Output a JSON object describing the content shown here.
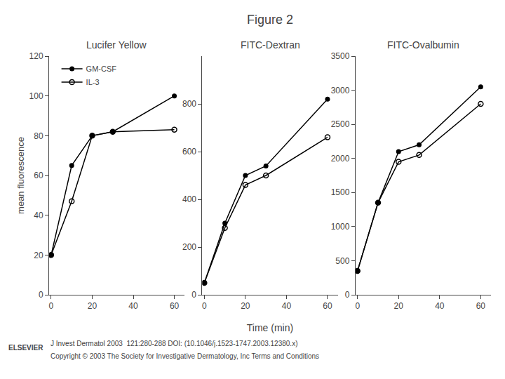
{
  "chart_data": [
    {
      "type": "line",
      "title": "Lucifer Yellow",
      "ylabel": "mean fluorescence",
      "x": [
        0,
        10,
        20,
        30,
        60
      ],
      "series": [
        {
          "name": "GM-CSF",
          "color": "#000000",
          "marker": "filled",
          "values": [
            20,
            65,
            80,
            82,
            100
          ]
        },
        {
          "name": "IL-3",
          "color": "#000000",
          "marker": "open",
          "values": [
            20,
            47,
            80,
            82,
            83
          ]
        }
      ],
      "xlim": [
        -1,
        65
      ],
      "xticks": [
        0,
        20,
        40,
        60
      ],
      "ylim": [
        0,
        120
      ],
      "yticks": [
        0,
        20,
        40,
        60,
        80,
        100,
        120
      ],
      "grid": false,
      "legend": "upper left",
      "annotations": [
        "Figure 2",
        "J Invest Dermatol 2003  121:280-288 DOI: (10.1046/j.1523-1747.2003.12380.x)",
        "Copyright © 2003 The Society for Investigative Dermatology, Inc Terms and Conditions",
        "ELSEVIER"
      ]
    },
    {
      "type": "line",
      "title": "FITC-Dextran",
      "xlabel": "Time (min)",
      "x": [
        0,
        10,
        20,
        30,
        60
      ],
      "series": [
        {
          "name": "GM-CSF",
          "color": "#000000",
          "marker": "filled",
          "values": [
            50,
            300,
            500,
            540,
            820
          ]
        },
        {
          "name": "IL-3",
          "color": "#000000",
          "marker": "open",
          "values": [
            50,
            280,
            460,
            500,
            660
          ]
        }
      ],
      "xlim": [
        -1,
        65
      ],
      "xticks": [
        0,
        20,
        40,
        60
      ],
      "ylim": [
        0,
        1000
      ],
      "yticks": [
        0,
        200,
        400,
        600,
        800
      ],
      "grid": false
    },
    {
      "type": "line",
      "title": "FITC-Ovalbumin",
      "x": [
        0,
        10,
        20,
        30,
        60
      ],
      "series": [
        {
          "name": "GM-CSF",
          "color": "#000000",
          "marker": "filled",
          "values": [
            350,
            1350,
            2100,
            2200,
            3050
          ]
        },
        {
          "name": "IL-3",
          "color": "#000000",
          "marker": "open",
          "values": [
            350,
            1350,
            1950,
            2050,
            2800
          ]
        }
      ],
      "xlim": [
        -1,
        65
      ],
      "xticks": [
        0,
        20,
        40,
        60
      ],
      "ylim": [
        0,
        3500
      ],
      "yticks": [
        0,
        500,
        1000,
        1500,
        2000,
        2500,
        3000,
        3500
      ],
      "grid": false
    }
  ]
}
